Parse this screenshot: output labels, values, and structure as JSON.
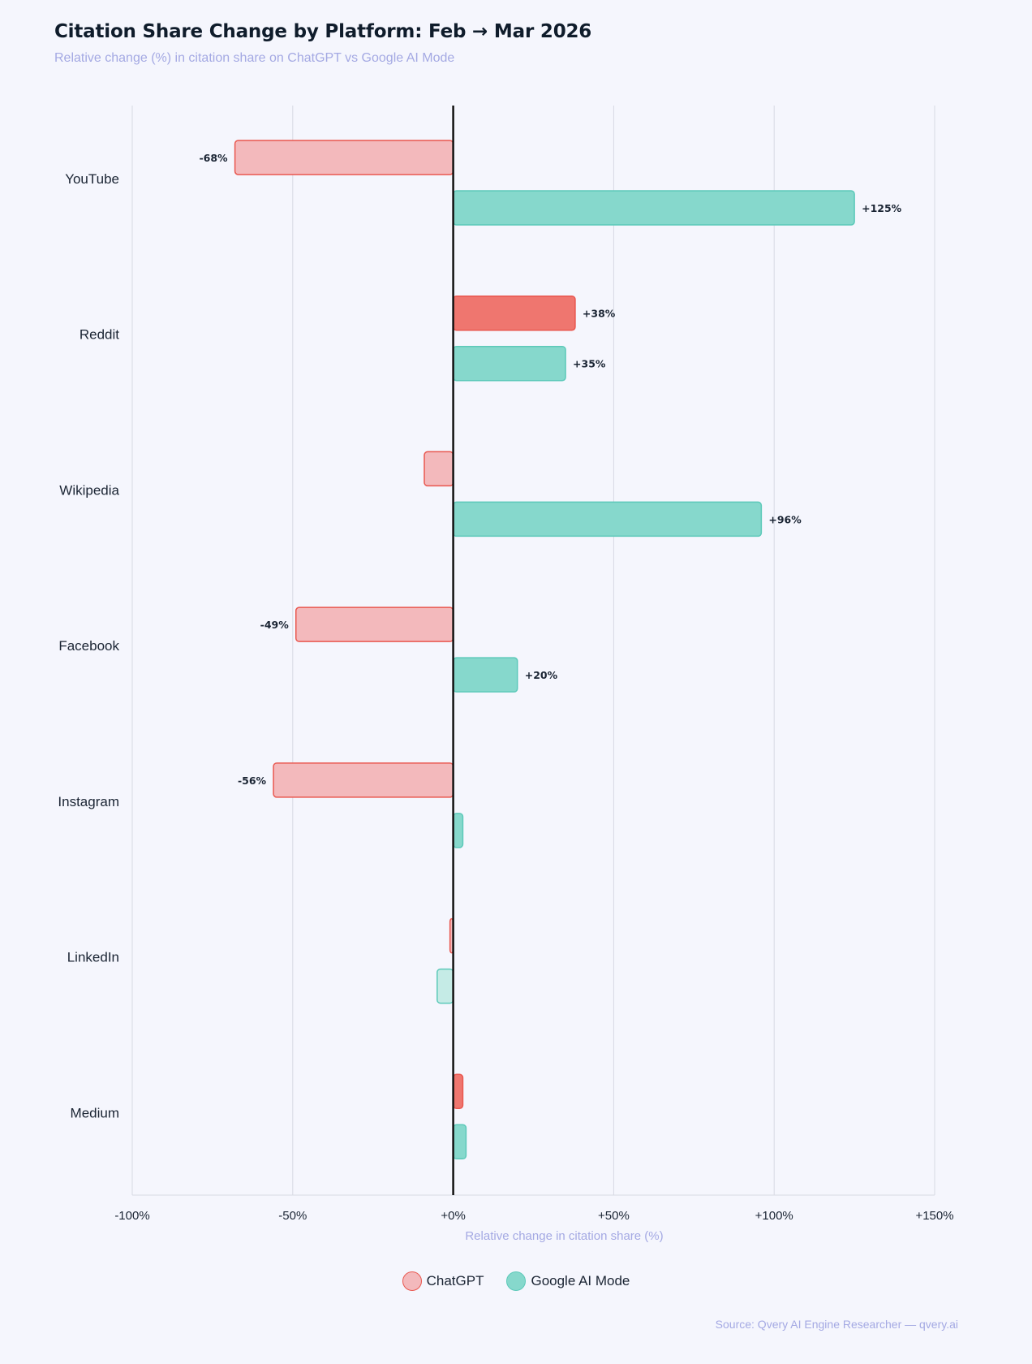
{
  "page": {
    "title": "Citation Share Change by Platform: Feb → Mar 2026",
    "subtitle": "Relative change (%) in citation share on ChatGPT vs Google AI Mode",
    "source": "Source: Qvery AI Engine Researcher — qvery.ai"
  },
  "colors": {
    "chatgpt_fill": "#f3b9bc",
    "chatgpt_fill_strong": "#ef766f",
    "chatgpt_stroke": "#e9574f",
    "google_fill": "#86d8cc",
    "google_fill_light": "#c5ebe6",
    "google_stroke": "#5cc9b9",
    "zero_line": "#111111",
    "grid": "#d7d9e3",
    "axis_title": "#a4a9e3"
  },
  "chart_data": {
    "type": "bar",
    "orientation": "horizontal",
    "xlabel": "Relative change in citation share (%)",
    "xlim": [
      -100,
      150
    ],
    "xticks": [
      -100,
      -50,
      0,
      50,
      100,
      150
    ],
    "xtick_labels": [
      "-100%",
      "-50%",
      "+0%",
      "+50%",
      "+100%",
      "+150%"
    ],
    "grid": true,
    "legend_placement": "bottom-center",
    "categories": [
      "YouTube",
      "Reddit",
      "Wikipedia",
      "Facebook",
      "Instagram",
      "LinkedIn",
      "Medium"
    ],
    "series": [
      {
        "name": "ChatGPT",
        "values": [
          -68,
          38,
          -9,
          -49,
          -56,
          -1,
          3
        ],
        "labels": [
          "-68%",
          "+38%",
          "",
          "-49%",
          "-56%",
          "",
          ""
        ],
        "emphasis": [
          false,
          true,
          false,
          false,
          false,
          false,
          true
        ]
      },
      {
        "name": "Google AI Mode",
        "values": [
          125,
          35,
          96,
          20,
          3,
          -5,
          4
        ],
        "labels": [
          "+125%",
          "+35%",
          "+96%",
          "+20%",
          "",
          "",
          ""
        ],
        "emphasis": [
          false,
          false,
          false,
          false,
          false,
          true,
          false
        ]
      }
    ]
  }
}
